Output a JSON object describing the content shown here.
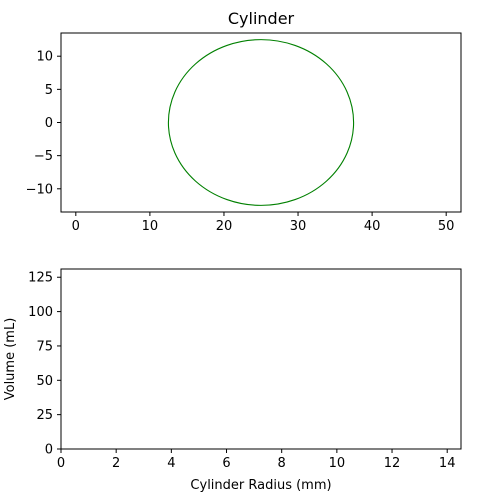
{
  "chart_data": [
    {
      "type": "line",
      "title": "Cylinder",
      "xlabel": "",
      "ylabel": "",
      "xlim": [
        -2,
        52
      ],
      "ylim": [
        -13.5,
        13.5
      ],
      "xticks": [
        0,
        10,
        20,
        30,
        40,
        50
      ],
      "yticks": [
        -10,
        -5,
        0,
        5,
        10
      ],
      "grid": false,
      "series": [
        {
          "shape": "circle",
          "center": [
            25,
            0
          ],
          "radius": 12.5,
          "color": "#008000"
        }
      ]
    },
    {
      "type": "line",
      "title": "",
      "xlabel": "Cylinder Radius (mm)",
      "ylabel": "Volume (mL)",
      "xlim": [
        0,
        14.5
      ],
      "ylim": [
        0,
        131
      ],
      "xticks": [
        0,
        2,
        4,
        6,
        8,
        10,
        12,
        14
      ],
      "yticks": [
        0,
        25,
        50,
        75,
        100,
        125
      ],
      "grid": false,
      "series": []
    }
  ]
}
